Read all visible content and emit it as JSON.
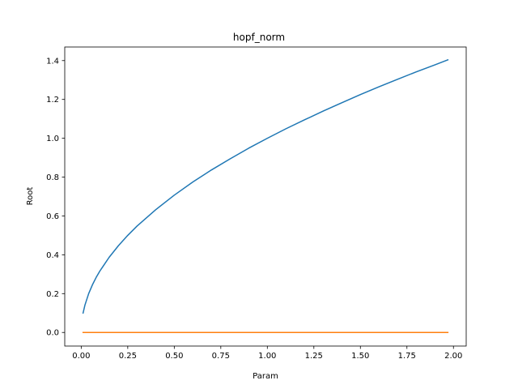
{
  "chart_data": {
    "type": "line",
    "title": "hopf_norm",
    "xlabel": "Param",
    "ylabel": "Root",
    "xlim": [
      -0.0885,
      2.0685
    ],
    "ylim": [
      -0.07,
      1.47
    ],
    "xticks": [
      0.0,
      0.25,
      0.5,
      0.75,
      1.0,
      1.25,
      1.5,
      1.75,
      2.0
    ],
    "xtick_labels": [
      "0.00",
      "0.25",
      "0.50",
      "0.75",
      "1.00",
      "1.25",
      "1.50",
      "1.75",
      "2.00"
    ],
    "yticks": [
      0.0,
      0.2,
      0.4,
      0.6,
      0.8,
      1.0,
      1.2,
      1.4
    ],
    "ytick_labels": [
      "0.0",
      "0.2",
      "0.4",
      "0.6",
      "0.8",
      "1.0",
      "1.2",
      "1.4"
    ],
    "grid": false,
    "series": [
      {
        "color": "#1f77b4",
        "x": [
          0.01,
          0.02,
          0.04,
          0.06,
          0.08,
          0.1,
          0.15,
          0.2,
          0.25,
          0.3,
          0.4,
          0.5,
          0.6,
          0.7,
          0.8,
          0.9,
          1.0,
          1.1,
          1.2,
          1.3,
          1.4,
          1.5,
          1.6,
          1.7,
          1.8,
          1.9,
          1.97
        ],
        "values": [
          0.1,
          0.141,
          0.2,
          0.245,
          0.283,
          0.316,
          0.387,
          0.447,
          0.5,
          0.548,
          0.632,
          0.707,
          0.775,
          0.837,
          0.894,
          0.949,
          1.0,
          1.049,
          1.095,
          1.14,
          1.183,
          1.225,
          1.265,
          1.304,
          1.342,
          1.378,
          1.404
        ]
      },
      {
        "color": "#ff7f0e",
        "x": [
          0.01,
          1.97
        ],
        "values": [
          0.0,
          0.0
        ]
      }
    ]
  }
}
